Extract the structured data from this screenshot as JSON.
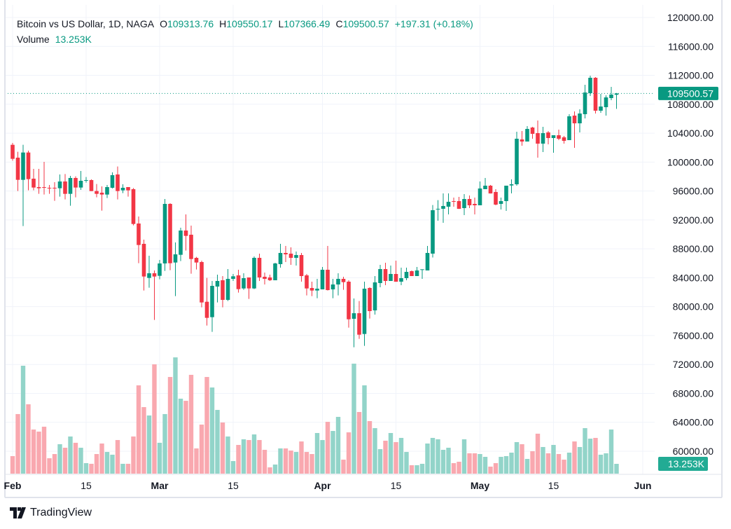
{
  "legend": {
    "title": "Bitcoin vs US Dollar, 1D, NAGA",
    "open_label": "O",
    "open": "109313.76",
    "high_label": "H",
    "high": "109550.17",
    "low_label": "L",
    "low": "107366.49",
    "close_label": "C",
    "close": "109500.57",
    "change": "+197.31 (+0.18%)",
    "volume_label": "Volume",
    "volume": "13.253K"
  },
  "footer": {
    "brand": "TradingView"
  },
  "colors": {
    "up": "#089981",
    "down": "#f23645",
    "vol_up": "#92d4c9",
    "vol_down": "#f9a8af",
    "grid": "#f0f3fa",
    "text": "#131722"
  },
  "chart_data": {
    "type": "candlestick",
    "title": "Bitcoin vs US Dollar, 1D, NAGA",
    "ylim": [
      58000,
      122000
    ],
    "price_ticks": [
      "60000.00",
      "64000.00",
      "68000.00",
      "72000.00",
      "76000.00",
      "80000.00",
      "84000.00",
      "88000.00",
      "92000.00",
      "96000.00",
      "100000.00",
      "104000.00",
      "108000.00",
      "112000.00",
      "116000.00",
      "120000.00"
    ],
    "time_ticks": [
      {
        "label": "Feb",
        "index": 0,
        "bold": true
      },
      {
        "label": "15",
        "index": 14,
        "bold": false
      },
      {
        "label": "Mar",
        "index": 28,
        "bold": true
      },
      {
        "label": "15",
        "index": 42,
        "bold": false
      },
      {
        "label": "Apr",
        "index": 59,
        "bold": true
      },
      {
        "label": "15",
        "index": 73,
        "bold": false
      },
      {
        "label": "May",
        "index": 89,
        "bold": true
      },
      {
        "label": "15",
        "index": 103,
        "bold": false
      },
      {
        "label": "Jun",
        "index": 120,
        "bold": true
      }
    ],
    "last_price_label": "109500.57",
    "last_volume_label": "13.253K",
    "ohlc": [
      [
        102391,
        102650,
        100194,
        100452
      ],
      [
        100614,
        101422,
        95993,
        97544
      ],
      [
        97544,
        102391,
        91147,
        101325
      ],
      [
        101325,
        101583,
        96090,
        97641
      ],
      [
        97706,
        99063,
        96090,
        96478
      ],
      [
        96543,
        99063,
        95606,
        96381
      ],
      [
        96543,
        100032,
        95509,
        96446
      ],
      [
        96446,
        96834,
        95606,
        96381
      ],
      [
        96446,
        97221,
        94636,
        96381
      ],
      [
        96381,
        98288,
        95218,
        97318
      ],
      [
        97318,
        98352,
        94830,
        95606
      ],
      [
        95606,
        98094,
        93958,
        97803
      ],
      [
        97803,
        98029,
        95121,
        96478
      ],
      [
        96478,
        98772,
        96155,
        97415
      ],
      [
        97415,
        97932,
        97157,
        97512
      ],
      [
        97512,
        97609,
        95990,
        95990
      ],
      [
        95994,
        96963,
        95121,
        95606
      ],
      [
        95767,
        96640,
        93279,
        95509
      ],
      [
        95509,
        96834,
        95024,
        96543
      ],
      [
        96446,
        98578,
        96349,
        98190
      ],
      [
        98288,
        99386,
        94830,
        95994
      ],
      [
        96090,
        96931,
        95703,
        96446
      ],
      [
        96543,
        96543,
        95218,
        96090
      ],
      [
        96252,
        96414,
        91244,
        91438
      ],
      [
        91502,
        92472,
        86010,
        88530
      ],
      [
        88692,
        89273,
        82229,
        84168
      ],
      [
        83975,
        87044,
        82617,
        84621
      ],
      [
        84621,
        85009,
        78158,
        84168
      ],
      [
        84265,
        86462,
        83781,
        85977
      ],
      [
        85977,
        94895,
        84944,
        94216
      ],
      [
        94216,
        94313,
        85041,
        86010
      ],
      [
        86106,
        88885,
        81454,
        87237
      ],
      [
        87173,
        90921,
        86301,
        90533
      ],
      [
        90533,
        92763,
        87754,
        89790
      ],
      [
        89952,
        91211,
        84556,
        86591
      ],
      [
        86753,
        86882,
        85138,
        86106
      ],
      [
        86172,
        86365,
        79903,
        80582
      ],
      [
        80679,
        83974,
        77383,
        78450
      ],
      [
        78546,
        83554,
        76510,
        82876
      ],
      [
        82779,
        84426,
        80581,
        83554
      ],
      [
        83651,
        84232,
        79903,
        80937
      ],
      [
        80937,
        85202,
        80775,
        83845
      ],
      [
        83845,
        84523,
        83554,
        84200
      ],
      [
        84330,
        85105,
        81939,
        82423
      ],
      [
        82520,
        84620,
        82326,
        83942
      ],
      [
        84039,
        84039,
        81066,
        82520
      ],
      [
        82520,
        86947,
        82423,
        86753
      ],
      [
        86753,
        87334,
        83554,
        84039
      ],
      [
        84135,
        84717,
        83070,
        83845
      ],
      [
        84039,
        84426,
        83554,
        83651
      ],
      [
        83651,
        86074,
        83651,
        85977
      ],
      [
        85880,
        88691,
        85396,
        87431
      ],
      [
        87431,
        88401,
        86171,
        87237
      ],
      [
        87334,
        88207,
        85783,
        86753
      ],
      [
        86753,
        87625,
        85687,
        87140
      ],
      [
        87140,
        87431,
        83457,
        84232
      ],
      [
        84330,
        84523,
        81551,
        82520
      ],
      [
        82585,
        83457,
        81454,
        82230
      ],
      [
        82230,
        83845,
        81163,
        82488
      ],
      [
        82391,
        85493,
        82391,
        85105
      ],
      [
        85105,
        88401,
        82230,
        82294
      ],
      [
        82391,
        83845,
        81163,
        83070
      ],
      [
        83070,
        84620,
        81551,
        83845
      ],
      [
        83845,
        84135,
        82326,
        83393
      ],
      [
        83457,
        83651,
        77092,
        78255
      ],
      [
        78320,
        81131,
        74378,
        79095
      ],
      [
        79095,
        80775,
        75541,
        76123
      ],
      [
        76220,
        83457,
        74572,
        82488
      ],
      [
        82585,
        82682,
        78352,
        79387
      ],
      [
        79483,
        84232,
        78901,
        83360
      ],
      [
        83264,
        85783,
        82682,
        85202
      ],
      [
        85202,
        86074,
        82973,
        83554
      ],
      [
        83554,
        85687,
        83554,
        84523
      ],
      [
        84523,
        86365,
        83450,
        83450
      ],
      [
        83457,
        85396,
        82973,
        83942
      ],
      [
        83942,
        85396,
        83651,
        84814
      ],
      [
        84911,
        85008,
        84232,
        84232
      ],
      [
        84232,
        85493,
        84232,
        85008
      ],
      [
        85105,
        85170,
        83845,
        85170
      ],
      [
        85008,
        88401,
        85008,
        87431
      ],
      [
        87334,
        94055,
        86800,
        93344
      ],
      [
        93441,
        94733,
        91890,
        93538
      ],
      [
        93538,
        95670,
        91599,
        93926
      ],
      [
        93829,
        95670,
        92762,
        94507
      ],
      [
        94604,
        95089,
        93829,
        94507
      ],
      [
        94604,
        95186,
        93530,
        93530
      ],
      [
        93635,
        95573,
        92665,
        94895
      ],
      [
        94895,
        95380,
        93635,
        94023
      ],
      [
        94216,
        95089,
        92762,
        94023
      ],
      [
        94023,
        97318,
        94023,
        96349
      ],
      [
        96252,
        97803,
        96252,
        96737
      ],
      [
        96737,
        96834,
        95660,
        95660
      ],
      [
        95864,
        96252,
        94023,
        94120
      ],
      [
        94216,
        95089,
        93441,
        94604
      ],
      [
        94604,
        96737,
        93247,
        96737
      ],
      [
        96769,
        97609,
        95670,
        96930
      ],
      [
        96930,
        104200,
        96737,
        103231
      ],
      [
        103134,
        104297,
        102262,
        102843
      ],
      [
        102843,
        104976,
        102843,
        104588
      ],
      [
        104782,
        104879,
        103231,
        103909
      ],
      [
        104006,
        105751,
        100614,
        102552
      ],
      [
        102552,
        104879,
        101389,
        104006
      ],
      [
        104103,
        104297,
        102456,
        103328
      ],
      [
        103328,
        103715,
        101292,
        103715
      ],
      [
        103715,
        104491,
        103037,
        103231
      ],
      [
        103425,
        103618,
        102552,
        102940
      ],
      [
        103037,
        106624,
        103037,
        106333
      ],
      [
        106430,
        107011,
        101971,
        105364
      ],
      [
        105364,
        107302,
        104103,
        106721
      ],
      [
        106624,
        110694,
        106042,
        109628
      ],
      [
        109531,
        111955,
        109144,
        111664
      ],
      [
        111664,
        111761,
        106721,
        107108
      ],
      [
        107108,
        109435,
        106818,
        107690
      ],
      [
        107593,
        109241,
        106430,
        108950
      ],
      [
        108853,
        110404,
        108562,
        109338
      ],
      [
        109313.76,
        109550.17,
        107366.49,
        109500.57
      ]
    ],
    "volume_k": [
      23.7,
      80.5,
      145.8,
      93.7,
      59.6,
      56.8,
      63.4,
      20.8,
      26.5,
      39.8,
      35.0,
      50.2,
      41.7,
      35.0,
      14.2,
      13.3,
      26.5,
      40.7,
      29.3,
      25.6,
      45.4,
      13.3,
      13.3,
      50.2,
      119.3,
      89.9,
      78.6,
      147.7,
      41.7,
      80.5,
      130.6,
      157.1,
      101.3,
      98.4,
      133.5,
      34.1,
      66.3,
      130.6,
      116.4,
      86.1,
      69.1,
      50.2,
      17.0,
      38.8,
      46.4,
      45.4,
      53.0,
      45.4,
      32.2,
      8.5,
      12.3,
      34.1,
      34.1,
      31.2,
      29.3,
      43.5,
      29.3,
      26.5,
      54.9,
      45.4,
      70.0,
      57.7,
      76.7,
      18.9,
      55.8,
      148.6,
      83.3,
      119.3,
      71.0,
      61.5,
      33.1,
      44.5,
      54.9,
      42.6,
      48.3,
      29.3,
      11.4,
      11.4,
      13.3,
      40.7,
      48.3,
      46.4,
      32.2,
      35.0,
      14.2,
      16.1,
      46.4,
      27.5,
      27.5,
      26.5,
      22.7,
      9.5,
      14.2,
      22.7,
      23.7,
      28.4,
      42.6,
      39.8,
      19.9,
      30.3,
      54.0,
      36.0,
      27.5,
      38.8,
      26.5,
      18.9,
      28.4,
      43.5,
      36.0,
      61.5,
      47.3,
      48.3,
      25.6,
      27.5,
      59.6,
      13.253
    ]
  }
}
